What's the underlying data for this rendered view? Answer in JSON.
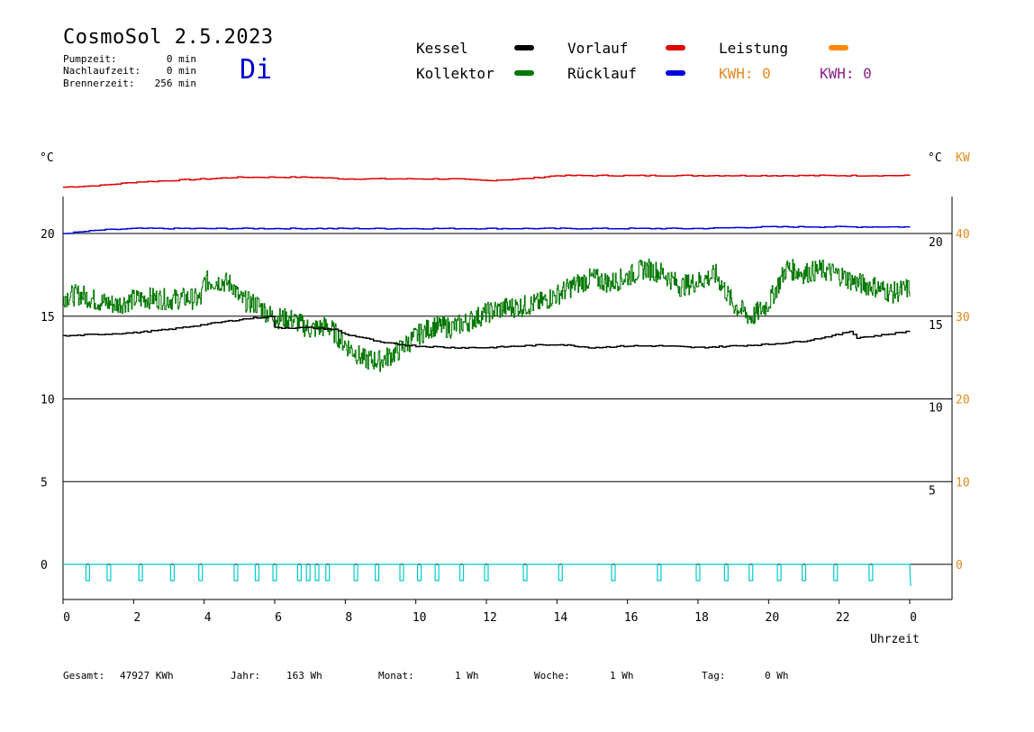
{
  "header": {
    "title": "CosmoSol 2.5.2023",
    "day": "Di",
    "stats": [
      {
        "label": "Pumpzeit:",
        "value": "0 min"
      },
      {
        "label": "Nachlaufzeit:",
        "value": "0 min"
      },
      {
        "label": "Brennerzeit:",
        "value": "256 min"
      }
    ]
  },
  "legend": {
    "kessel": "Kessel",
    "kollektor": "Kollektor",
    "vorlauf": "Vorlauf",
    "ruecklauf": "Rücklauf",
    "leistung": "Leistung",
    "kwh_orange": "KWH: 0",
    "kwh_purple": "KWH: 0"
  },
  "colors": {
    "kessel": "#000000",
    "kollektor": "#007700",
    "vorlauf": "#dd0000",
    "ruecklauf": "#0000dd",
    "leistung": "#ff8800",
    "kwh_purple": "#882288",
    "pump": "#00cccc"
  },
  "axes": {
    "left_unit": "°C",
    "right_unit": "°C",
    "kw_unit": "KW",
    "xlabel": "Uhrzeit"
  },
  "footer": [
    {
      "label": "Gesamt:",
      "value": "47927 KWh"
    },
    {
      "label": "Jahr:",
      "value": "163 Wh"
    },
    {
      "label": "Monat:",
      "value": "1 Wh"
    },
    {
      "label": "Woche:",
      "value": "1 Wh"
    },
    {
      "label": "Tag:",
      "value": "0 Wh"
    }
  ],
  "chart_data": {
    "type": "line",
    "xlim": [
      0,
      24
    ],
    "ylim": [
      -4.3,
      24.5
    ],
    "x_ticks": [
      "0",
      "2",
      "4",
      "6",
      "8",
      "10",
      "12",
      "14",
      "16",
      "18",
      "20",
      "22",
      "0"
    ],
    "y_ticks_left": [
      0,
      5,
      10,
      15,
      20
    ],
    "y_ticks_right_c": [
      5,
      10,
      15,
      20
    ],
    "y_ticks_right_kw": [
      0,
      10,
      20,
      30,
      40
    ],
    "series": [
      {
        "name": "Vorlauf",
        "key": "vorlauf",
        "x": [
          0,
          1,
          2,
          3,
          4,
          5,
          6,
          7,
          8,
          9,
          10,
          11,
          12,
          13,
          14,
          15,
          16,
          17,
          18,
          19,
          20,
          21,
          22,
          23,
          24
        ],
        "y": [
          22.8,
          22.9,
          23.1,
          23.2,
          23.3,
          23.4,
          23.4,
          23.4,
          23.3,
          23.3,
          23.3,
          23.3,
          23.2,
          23.3,
          23.5,
          23.5,
          23.5,
          23.5,
          23.5,
          23.5,
          23.5,
          23.5,
          23.5,
          23.5,
          23.5
        ]
      },
      {
        "name": "Rücklauf",
        "key": "ruecklauf",
        "x": [
          0,
          1,
          2,
          3,
          4,
          6,
          8,
          10,
          12,
          14,
          16,
          18,
          20,
          22,
          24
        ],
        "y": [
          20.0,
          20.2,
          20.3,
          20.3,
          20.3,
          20.3,
          20.3,
          20.3,
          20.3,
          20.3,
          20.3,
          20.3,
          20.4,
          20.4,
          20.4
        ]
      },
      {
        "name": "Kollektor",
        "key": "kollektor",
        "x": [
          0,
          0.5,
          1,
          1.5,
          2,
          2.5,
          3,
          3.5,
          3.9,
          4,
          4.5,
          4.8,
          5,
          5.5,
          5.9,
          6,
          6.5,
          7,
          7.5,
          8,
          8.5,
          9,
          9.5,
          10,
          10.5,
          11,
          11.5,
          12,
          12.5,
          13,
          13.5,
          14,
          14.5,
          15,
          15.5,
          16,
          16.5,
          17,
          17.5,
          18,
          18.5,
          19,
          19.5,
          20,
          20.5,
          21,
          21.5,
          22,
          22.5,
          23,
          23.5,
          24
        ],
        "y": [
          16.2,
          16.3,
          15.9,
          15.7,
          16.0,
          16.1,
          16.0,
          16.1,
          16.0,
          17.1,
          17.1,
          16.9,
          16.0,
          15.7,
          15.0,
          14.9,
          14.8,
          14.2,
          14.4,
          13.3,
          12.4,
          12.3,
          12.9,
          13.8,
          14.4,
          14.3,
          14.7,
          15.2,
          15.5,
          15.6,
          15.8,
          16.3,
          16.9,
          17.3,
          17.0,
          17.4,
          17.9,
          17.6,
          16.8,
          17.1,
          17.5,
          15.7,
          14.9,
          15.8,
          17.9,
          17.6,
          17.8,
          17.5,
          17.0,
          16.8,
          16.4,
          16.7
        ]
      },
      {
        "name": "Kessel",
        "key": "kessel",
        "x": [
          0,
          1,
          2,
          3,
          4,
          5,
          5.9,
          6,
          7,
          7.7,
          8,
          8.5,
          9,
          10,
          11,
          12,
          13,
          14,
          15,
          16,
          17,
          18,
          19,
          20,
          21,
          22,
          22.3,
          22.5,
          23,
          24
        ],
        "y": [
          13.8,
          13.9,
          14.0,
          14.2,
          14.5,
          14.8,
          15.0,
          14.3,
          14.3,
          14.2,
          13.9,
          13.7,
          13.4,
          13.2,
          13.1,
          13.1,
          13.2,
          13.3,
          13.1,
          13.2,
          13.2,
          13.1,
          13.2,
          13.3,
          13.5,
          13.9,
          14.1,
          13.7,
          13.8,
          14.1
        ]
      }
    ],
    "pump_pulses": [
      0.7,
      1.3,
      2.2,
      3.1,
      3.9,
      4.9,
      5.5,
      6.0,
      6.7,
      6.95,
      7.2,
      7.5,
      8.3,
      8.9,
      9.6,
      10.1,
      10.6,
      11.3,
      12.0,
      13.1,
      14.1,
      15.6,
      16.9,
      18.0,
      18.8,
      19.5,
      20.3,
      21.0,
      21.9,
      22.9
    ]
  }
}
